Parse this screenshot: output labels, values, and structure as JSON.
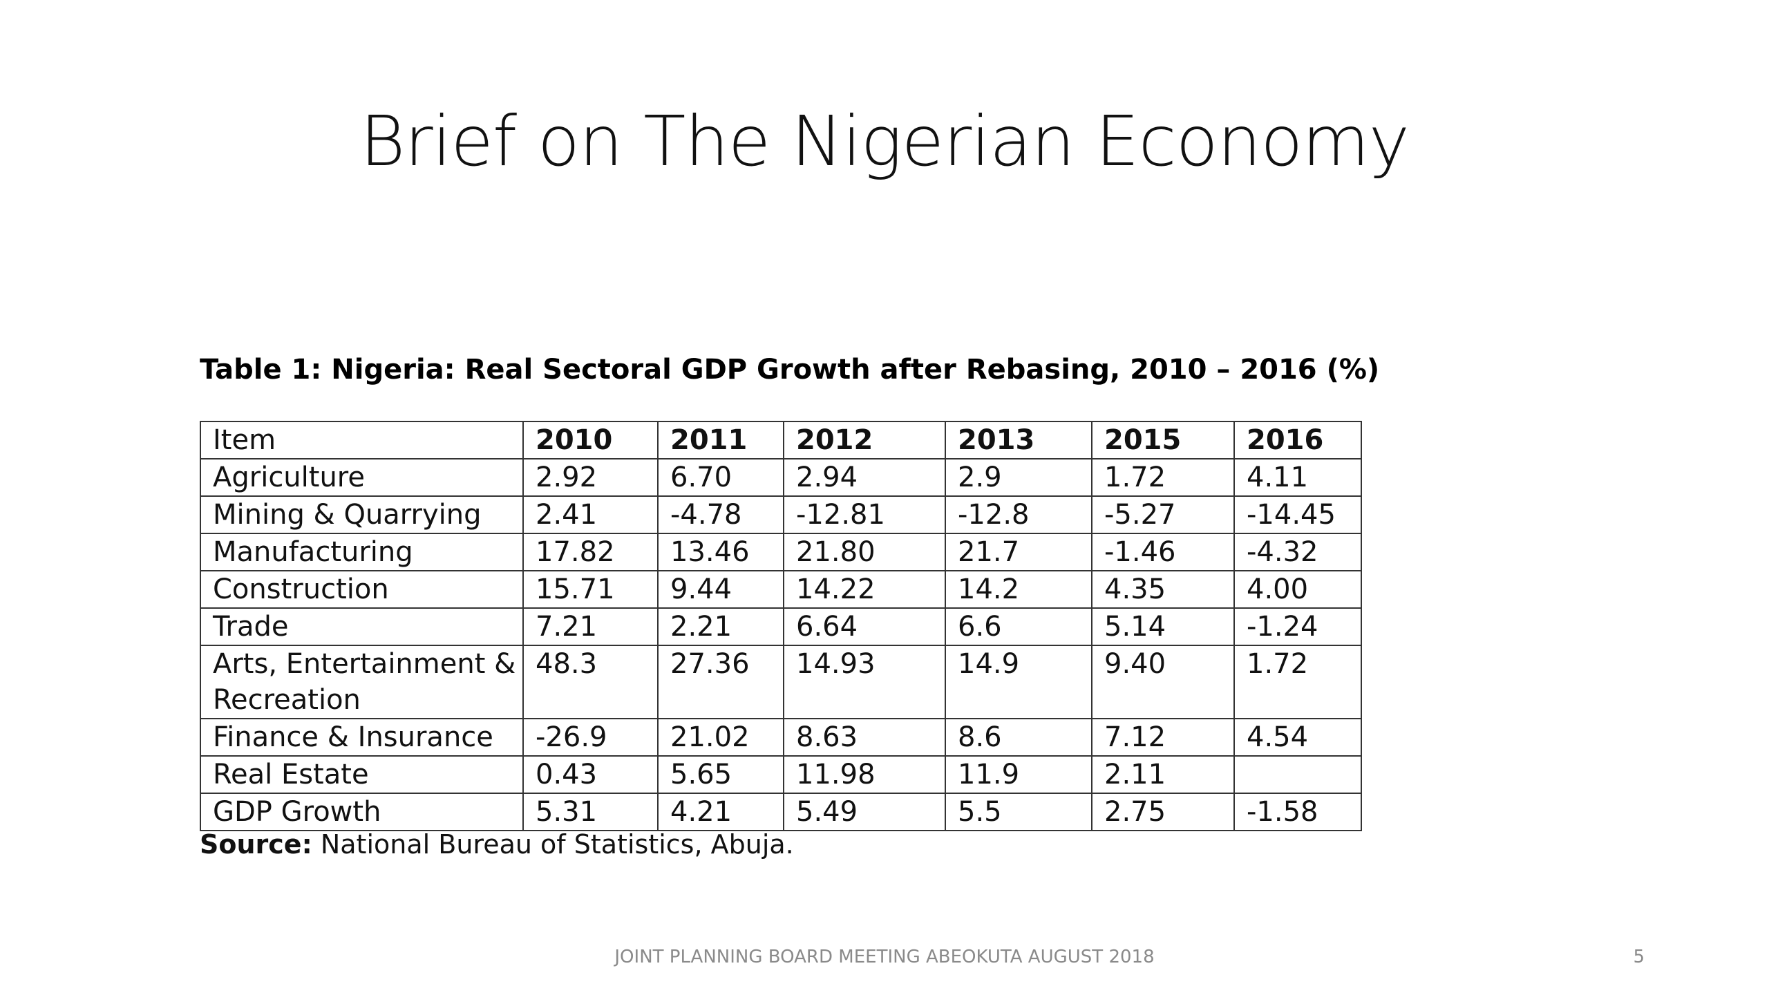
{
  "slide": {
    "title": "Brief on The Nigerian Economy",
    "footer": "JOINT PLANNING BOARD MEETING ABEOKUTA AUGUST 2018",
    "page_number": "5"
  },
  "table": {
    "caption": "Table 1: Nigeria: Real Sectoral GDP Growth after Rebasing, 2010 – 2016 (%)",
    "headers": [
      "Item",
      "2010",
      "2011",
      "2012",
      "2013",
      "2015",
      "2016"
    ],
    "rows": [
      {
        "item": "Agriculture",
        "values": [
          "2.92",
          "6.70",
          "2.94",
          "2.9",
          "1.72",
          "4.11"
        ]
      },
      {
        "item": "Mining & Quarrying",
        "values": [
          "2.41",
          "-4.78",
          "-12.81",
          "-12.8",
          "-5.27",
          "-14.45"
        ]
      },
      {
        "item": "Manufacturing",
        "values": [
          "17.82",
          "13.46",
          "21.80",
          "21.7",
          "-1.46",
          "-4.32"
        ]
      },
      {
        "item": "Construction",
        "values": [
          "15.71",
          "9.44",
          "14.22",
          "14.2",
          "4.35",
          "4.00"
        ]
      },
      {
        "item": "Trade",
        "values": [
          "7.21",
          "2.21",
          "6.64",
          "6.6",
          "5.14",
          "-1.24"
        ]
      },
      {
        "item": "Arts, Entertainment & Recreation",
        "values": [
          "48.3",
          "27.36",
          "14.93",
          "14.9",
          "9.40",
          "1.72"
        ]
      },
      {
        "item": "Finance & Insurance",
        "values": [
          "-26.9",
          "21.02",
          "8.63",
          "8.6",
          "7.12",
          "4.54"
        ]
      },
      {
        "item": "Real Estate",
        "values": [
          "0.43",
          "5.65",
          "11.98",
          "11.9",
          "2.11",
          ""
        ]
      },
      {
        "item": "GDP Growth",
        "values": [
          "5.31",
          "4.21",
          "5.49",
          "5.5",
          "2.75",
          "-1.58"
        ]
      }
    ],
    "source_label": "Source:",
    "source_text": " National Bureau of Statistics, Abuja."
  }
}
